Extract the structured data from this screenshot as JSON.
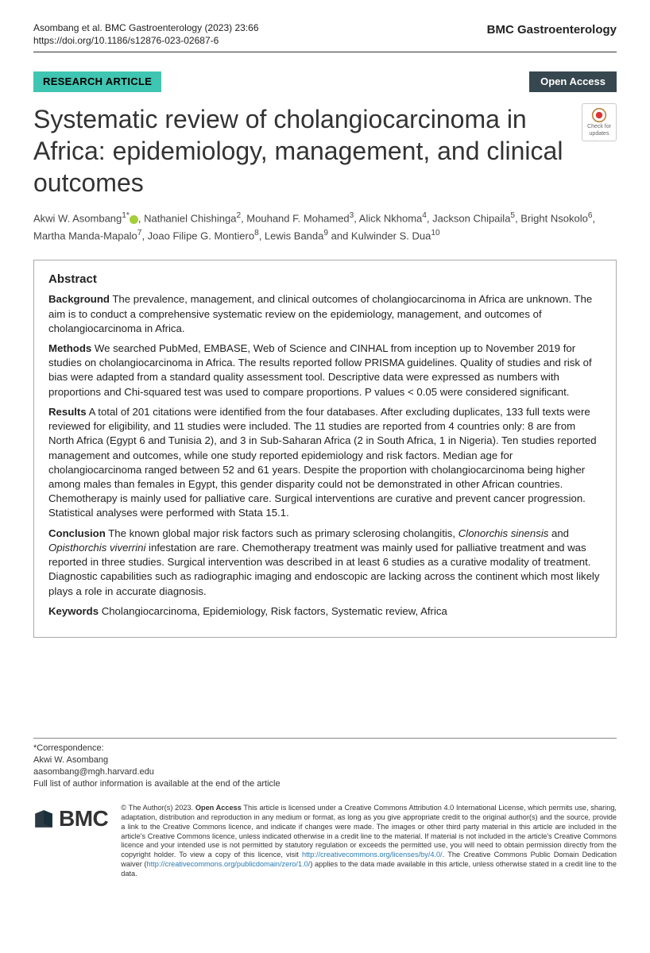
{
  "header": {
    "citation_line": "Asombang et al. BMC Gastroenterology      (2023) 23:66",
    "doi_line": "https://doi.org/10.1186/s12876-023-02687-6",
    "journal": "BMC Gastroenterology"
  },
  "labels": {
    "research": "RESEARCH ARTICLE",
    "open_access": "Open Access"
  },
  "check_updates": "Check for updates",
  "title": "Systematic review of cholangiocarcinoma in Africa: epidemiology, management, and clinical outcomes",
  "authors_html": "Akwi W. Asombang<sup>1*</sup><span class=\"orcid\"></span>, Nathaniel Chishinga<sup>2</sup>, Mouhand F. Mohamed<sup>3</sup>, Alick Nkhoma<sup>4</sup>, Jackson Chipaila<sup>5</sup>, Bright Nsokolo<sup>6</sup>, Martha Manda-Mapalo<sup>7</sup>, Joao Filipe G. Montiero<sup>8</sup>, Lewis Banda<sup>9</sup> and Kulwinder S. Dua<sup>10</sup>",
  "abstract": {
    "heading": "Abstract",
    "background_label": "Background",
    "background": "  The prevalence, management, and clinical outcomes of cholangiocarcinoma in Africa are unknown. The aim is to conduct a comprehensive systematic review on the epidemiology, management, and outcomes of cholangiocarcinoma in Africa.",
    "methods_label": "Methods",
    "methods": "  We searched PubMed, EMBASE, Web of Science and CINHAL from inception up to November 2019 for studies on cholangiocarcinoma in Africa. The results reported follow PRISMA guidelines. Quality of studies and risk of bias were adapted from a standard quality assessment tool. Descriptive data were expressed as numbers with proportions and Chi-squared test was used to compare proportions. P values < 0.05 were considered significant.",
    "results_label": "Results",
    "results": "  A total of 201 citations were identified from the four databases. After excluding duplicates, 133 full texts were reviewed for eligibility, and 11 studies were included. The 11 studies are reported from 4 countries only: 8 are from North Africa (Egypt 6 and Tunisia 2), and 3 in Sub-Saharan Africa (2 in South Africa, 1 in Nigeria). Ten studies reported management and outcomes, while one study reported epidemiology and risk factors. Median age for cholangiocarcinoma ranged between 52 and 61 years. Despite the proportion with cholangiocarcinoma being higher among males than females in Egypt, this gender disparity could not be demonstrated in other African countries. Chemotherapy is mainly used for palliative care. Surgical interventions are curative and prevent cancer progression. Statistical analyses were performed with Stata 15.1.",
    "conclusion_label": "Conclusion",
    "conclusion_html": "  The known global major risk factors such as primary sclerosing cholangitis, <i>Clonorchis sinensis</i> and <i>Opisthorchis viverrini</i> infestation are rare. Chemotherapy treatment was mainly used for palliative treatment and was reported in three studies. Surgical intervention was described in at least 6 studies as a curative modality of treatment. Diagnostic capabilities such as radiographic imaging and endoscopic are lacking across the continent which most likely plays a role in accurate diagnosis.",
    "keywords_label": "Keywords",
    "keywords": "  Cholangiocarcinoma, Epidemiology, Risk factors, Systematic review, Africa"
  },
  "correspondence": {
    "label": "*Correspondence:",
    "name": "Akwi W. Asombang",
    "email": "aasombang@mgh.harvard.edu",
    "affil_note": "Full list of author information is available at the end of the article"
  },
  "license": {
    "prefix": "© The Author(s) 2023. ",
    "open_access": "Open Access",
    "text1": " This article is licensed under a Creative Commons Attribution 4.0 International License, which permits use, sharing, adaptation, distribution and reproduction in any medium or format, as long as you give appropriate credit to the original author(s) and the source, provide a link to the Creative Commons licence, and indicate if changes were made. The images or other third party material in this article are included in the article's Creative Commons licence, unless indicated otherwise in a credit line to the material. If material is not included in the article's Creative Commons licence and your intended use is not permitted by statutory regulation or exceeds the permitted use, you will need to obtain permission directly from the copyright holder. To view a copy of this licence, visit ",
    "link1": "http://creativecommons.org/licenses/by/4.0/",
    "text2": ". The Creative Commons Public Domain Dedication waiver (",
    "link2": "http://creativecommons.org/publicdomain/zero/1.0/",
    "text3": ") applies to the data made available in this article, unless otherwise stated in a credit line to the data."
  },
  "bmc_word": "BMC"
}
